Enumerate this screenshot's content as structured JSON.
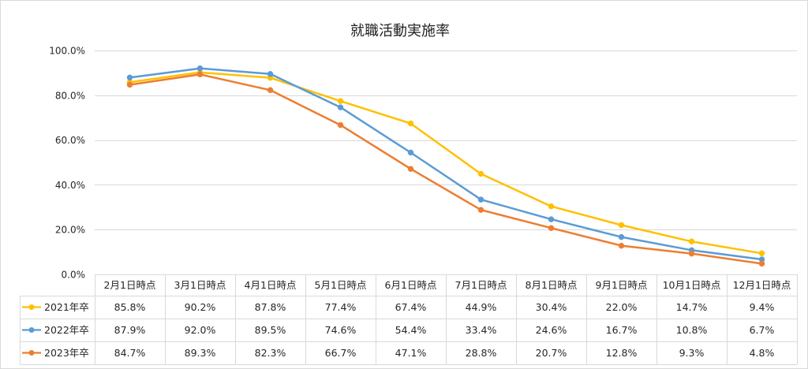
{
  "chart_data": {
    "type": "line",
    "title": "就職活動実施率",
    "xlabel": "",
    "ylabel": "",
    "ylim": [
      0,
      100
    ],
    "yticks": [
      0,
      20,
      40,
      60,
      80,
      100
    ],
    "ytick_labels": [
      "0.0%",
      "20.0%",
      "40.0%",
      "60.0%",
      "80.0%",
      "100.0%"
    ],
    "categories": [
      "2月1日時点",
      "3月1日時点",
      "4月1日時点",
      "5月1日時点",
      "6月1日時点",
      "7月1日時点",
      "8月1日時点",
      "9月1日時点",
      "10月1日時点",
      "12月1日時点"
    ],
    "series": [
      {
        "name": "2021年卒",
        "color": "#FFC000",
        "values": [
          85.8,
          90.2,
          87.8,
          77.4,
          67.4,
          44.9,
          30.4,
          22.0,
          14.7,
          9.4
        ]
      },
      {
        "name": "2022年卒",
        "color": "#5B9BD5",
        "values": [
          87.9,
          92.0,
          89.5,
          74.6,
          54.4,
          33.4,
          24.6,
          16.7,
          10.8,
          6.7
        ]
      },
      {
        "name": "2023年卒",
        "color": "#ED7D31",
        "values": [
          84.7,
          89.3,
          82.3,
          66.7,
          47.1,
          28.8,
          20.7,
          12.8,
          9.3,
          4.8
        ]
      }
    ],
    "grid": true,
    "data_table": true,
    "legend": "bottom-left",
    "gridline_color": "#D9D9D9"
  }
}
